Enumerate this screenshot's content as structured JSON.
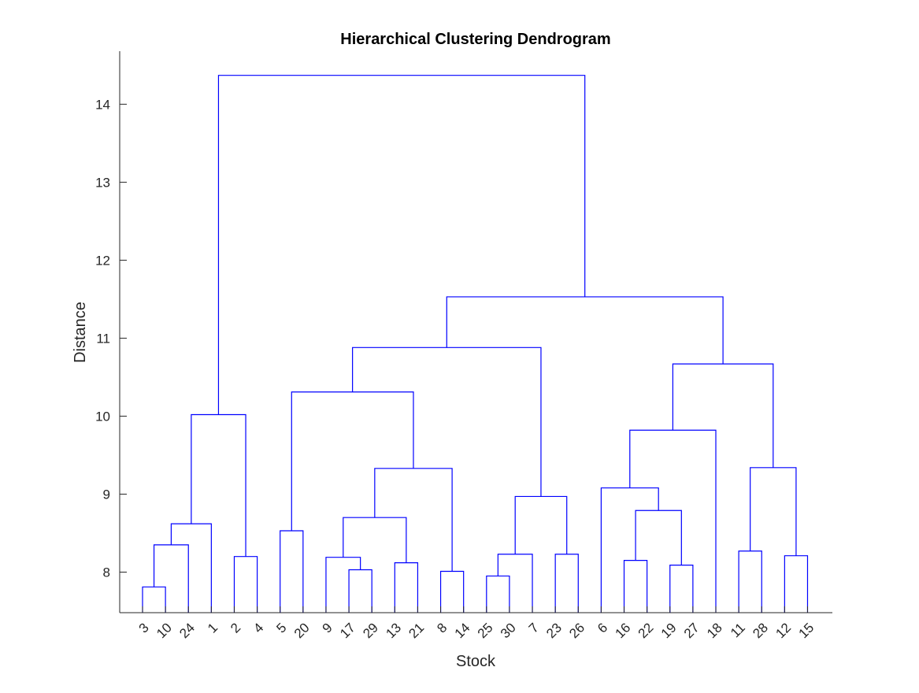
{
  "chart_data": {
    "type": "dendrogram",
    "title": "Hierarchical Clustering Dendrogram",
    "xlabel": "Stock",
    "ylabel": "Distance",
    "ylim": [
      7.48,
      14.68
    ],
    "yticks": [
      8,
      9,
      10,
      11,
      12,
      13,
      14
    ],
    "leaf_order": [
      "3",
      "10",
      "24",
      "1",
      "2",
      "4",
      "5",
      "20",
      "9",
      "17",
      "29",
      "13",
      "21",
      "8",
      "14",
      "25",
      "30",
      "7",
      "23",
      "26",
      "6",
      "16",
      "22",
      "19",
      "27",
      "18",
      "11",
      "28",
      "12",
      "15"
    ],
    "line_color": "#0000ff",
    "links": [
      {
        "a": "3",
        "b": "10",
        "height": 7.81
      },
      {
        "a": "L:3",
        "b": "24",
        "height": 8.35
      },
      {
        "a": "L:3",
        "b": "1",
        "height": 8.62
      },
      {
        "a": "2",
        "b": "4",
        "height": 8.2
      },
      {
        "a": "L:3",
        "b": "L:2",
        "height": 10.02
      },
      {
        "a": "5",
        "b": "20",
        "height": 8.53
      },
      {
        "a": "17",
        "b": "29",
        "height": 8.03
      },
      {
        "a": "9",
        "b": "L:17",
        "height": 8.19
      },
      {
        "a": "13",
        "b": "21",
        "height": 8.12
      },
      {
        "a": "L:9",
        "b": "L:13",
        "height": 8.7
      },
      {
        "a": "8",
        "b": "14",
        "height": 8.01
      },
      {
        "a": "L:9",
        "b": "L:8",
        "height": 9.33
      },
      {
        "a": "L:5",
        "b": "L:9",
        "height": 10.31
      },
      {
        "a": "25",
        "b": "30",
        "height": 7.95
      },
      {
        "a": "L:25",
        "b": "7",
        "height": 8.23
      },
      {
        "a": "23",
        "b": "26",
        "height": 8.23
      },
      {
        "a": "L:25",
        "b": "L:23",
        "height": 8.97
      },
      {
        "a": "L:5",
        "b": "L:25",
        "height": 10.88
      },
      {
        "a": "19",
        "b": "27",
        "height": 8.09
      },
      {
        "a": "16",
        "b": "22",
        "height": 8.15
      },
      {
        "a": "L:16",
        "b": "L:19",
        "height": 8.79
      },
      {
        "a": "6",
        "b": "L:16",
        "height": 9.08
      },
      {
        "a": "L:6",
        "b": "18",
        "height": 9.82
      },
      {
        "a": "11",
        "b": "28",
        "height": 8.27
      },
      {
        "a": "12",
        "b": "15",
        "height": 8.21
      },
      {
        "a": "L:11",
        "b": "L:12",
        "height": 9.34
      },
      {
        "a": "L:6",
        "b": "L:11",
        "height": 10.67
      },
      {
        "a": "L:5",
        "b": "L:6",
        "height": 11.53
      },
      {
        "a": "L:3",
        "b": "L:5",
        "height": 14.37
      }
    ]
  }
}
